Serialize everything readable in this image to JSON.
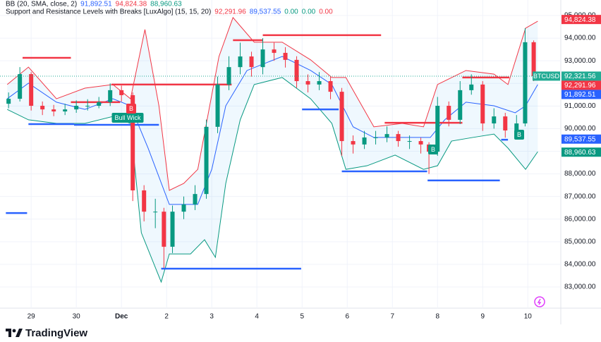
{
  "chart_data": {
    "type": "candlestick",
    "indicators": [
      {
        "name": "BB (20, SMA, close, 2)",
        "values": [
          {
            "value": 91892.51,
            "label": "91,892.51",
            "color": "#2962ff"
          },
          {
            "value": 94824.38,
            "label": "94,824.38",
            "color": "#f23645"
          },
          {
            "value": 88960.63,
            "label": "88,960.63",
            "color": "#089981"
          }
        ]
      },
      {
        "name": "Support and Resistance Levels with Breaks [LuxAlgo] (15, 15, 20)",
        "values": [
          {
            "value": 92291.96,
            "label": "92,291.96",
            "color": "#f23645"
          },
          {
            "value": 89537.55,
            "label": "89,537.55",
            "color": "#2962ff"
          },
          {
            "value": 0,
            "label": "0.00",
            "color": "#089981"
          },
          {
            "value": 0,
            "label": "0.00",
            "color": "#089981"
          },
          {
            "value": 0,
            "label": "0.00",
            "color": "#f23645"
          }
        ]
      }
    ],
    "xlim": [
      -0.69,
      11.73
    ],
    "xticks": [
      {
        "value": 0,
        "label": "29"
      },
      {
        "value": 1,
        "label": "30"
      },
      {
        "value": 2,
        "label": "Dec"
      },
      {
        "value": 3,
        "label": "2"
      },
      {
        "value": 4,
        "label": "3"
      },
      {
        "value": 5,
        "label": "4"
      },
      {
        "value": 6,
        "label": "5"
      },
      {
        "value": 7,
        "label": "6"
      },
      {
        "value": 8,
        "label": "7"
      },
      {
        "value": 9,
        "label": "8"
      },
      {
        "value": 10,
        "label": "9"
      },
      {
        "value": 11,
        "label": "10"
      }
    ],
    "ylim": [
      82065,
      95686
    ],
    "yticks": [
      {
        "value": 83000,
        "label": "83,000.00"
      },
      {
        "value": 84000,
        "label": "84,000.00"
      },
      {
        "value": 85000,
        "label": "85,000.00"
      },
      {
        "value": 86000,
        "label": "86,000.00"
      },
      {
        "value": 87000,
        "label": "87,000.00"
      },
      {
        "value": 88000,
        "label": "88,000.00"
      },
      {
        "value": 89000,
        "label": "89,000.00"
      },
      {
        "value": 90000,
        "label": "90,000.00"
      },
      {
        "value": 91000,
        "label": "91,000.00"
      },
      {
        "value": 92000,
        "label": "92,000.00"
      },
      {
        "value": 93000,
        "label": "93,000.00"
      },
      {
        "value": 94000,
        "label": "94,000.00"
      },
      {
        "value": 95000,
        "label": "95,000.00"
      }
    ],
    "grid": true,
    "up_color": "#089981",
    "down_color": "#f23645",
    "candles": {
      "x": [
        -0.5,
        -0.25,
        0,
        0.25,
        0.5,
        0.75,
        1,
        1.25,
        1.5,
        1.75,
        2,
        2.25,
        2.5,
        2.75,
        2.94,
        3.13,
        3.38,
        3.63,
        3.88,
        4.13,
        4.38,
        4.63,
        4.88,
        5.13,
        5.38,
        5.63,
        5.88,
        6.13,
        6.38,
        6.63,
        6.88,
        7.13,
        7.38,
        7.63,
        7.88,
        8.13,
        8.38,
        8.63,
        8.81,
        9,
        9.25,
        9.5,
        9.75,
        10,
        10.25,
        10.5,
        10.75,
        10.94,
        11.13
      ],
      "open": [
        91100,
        91320,
        92410,
        91010,
        90850,
        90760,
        90850,
        91010,
        91010,
        91170,
        91700,
        91480,
        87270,
        86330,
        86330,
        84780,
        86330,
        86650,
        87110,
        90080,
        91950,
        92720,
        93190,
        92720,
        93500,
        93350,
        93040,
        92100,
        91950,
        92100,
        91630,
        89450,
        89300,
        89610,
        89610,
        89760,
        89450,
        89450,
        89300,
        88980,
        91010,
        90390,
        91700,
        91950,
        90230,
        90540,
        89920,
        90230,
        93820
      ],
      "high": [
        91600,
        92720,
        92500,
        91200,
        91050,
        91100,
        91250,
        91300,
        91400,
        92000,
        91900,
        91600,
        87500,
        86900,
        86500,
        86600,
        87000,
        87500,
        90400,
        92300,
        93200,
        93800,
        93400,
        94000,
        93800,
        93600,
        93200,
        92400,
        92500,
        92300,
        91800,
        89700,
        89900,
        89900,
        90100,
        89900,
        89700,
        89600,
        89400,
        91400,
        91200,
        92100,
        92400,
        92100,
        90900,
        90700,
        90600,
        94440,
        93900
      ],
      "low": [
        90900,
        91200,
        90800,
        90600,
        90550,
        90600,
        90700,
        90800,
        90900,
        91000,
        91200,
        86800,
        85900,
        85600,
        83840,
        84500,
        86000,
        86400,
        86900,
        89800,
        91700,
        92400,
        92300,
        92400,
        93000,
        92700,
        91800,
        91600,
        91700,
        91300,
        88800,
        88900,
        89100,
        89300,
        89400,
        89200,
        89100,
        88900,
        88000,
        88800,
        90100,
        90200,
        91500,
        89900,
        90000,
        89600,
        89700,
        90100,
        92100
      ],
      "close": [
        91320,
        92410,
        91010,
        90850,
        90760,
        90850,
        91010,
        91010,
        91170,
        91700,
        91480,
        87270,
        86330,
        86330,
        84780,
        86330,
        86650,
        87110,
        90080,
        91950,
        92720,
        93190,
        92720,
        93500,
        93350,
        93040,
        92100,
        91950,
        92100,
        91630,
        89450,
        89300,
        89610,
        89610,
        89760,
        89450,
        89450,
        89300,
        88980,
        91010,
        90390,
        91700,
        91950,
        90230,
        90540,
        89920,
        90230,
        93820,
        92320
      ]
    },
    "bands": [
      {
        "color": "#f23645",
        "x": [
          -0.53,
          -0.06,
          0.56,
          1.19,
          1.81,
          2.2,
          2.52,
          2.83,
          3.06,
          3.38,
          3.69,
          4.16,
          4.47,
          4.94,
          5.56,
          6.19,
          6.66,
          6.97,
          7.59,
          8.22,
          8.69,
          9,
          9.63,
          10.25,
          10.56,
          10.95,
          11.22
        ],
        "values": [
          91950,
          92720,
          91320,
          91790,
          91950,
          91320,
          94380,
          91010,
          87270,
          87580,
          88200,
          93190,
          94910,
          93820,
          93820,
          93040,
          92260,
          92260,
          90080,
          90230,
          90080,
          91950,
          92570,
          92410,
          91950,
          94440,
          94750
        ]
      },
      {
        "color": "#2962ff",
        "x": [
          -0.53,
          -0.06,
          0.56,
          1.19,
          1.81,
          2.2,
          2.59,
          3.06,
          3.69,
          4,
          4.31,
          4.78,
          5.56,
          6.19,
          6.66,
          7.13,
          7.59,
          8.22,
          8.84,
          9.16,
          9.63,
          10.25,
          10.72,
          10.95,
          11.22
        ],
        "values": [
          91320,
          92010,
          91170,
          90850,
          91320,
          91010,
          89140,
          86650,
          86650,
          88200,
          91010,
          92570,
          93190,
          92570,
          91950,
          90080,
          89610,
          89610,
          89610,
          90390,
          91170,
          91010,
          90700,
          91010,
          91950
        ]
      },
      {
        "color": "#089981",
        "x": [
          -0.53,
          -0.06,
          0.56,
          1.19,
          1.81,
          2.2,
          2.44,
          2.88,
          3.06,
          3.53,
          3.84,
          4.08,
          4.31,
          4.63,
          4.94,
          5.56,
          6.19,
          6.66,
          6.97,
          7.44,
          8.06,
          8.69,
          9,
          9.31,
          9.78,
          10.25,
          10.56,
          10.95,
          11.22
        ],
        "values": [
          90850,
          90390,
          90230,
          90230,
          90540,
          90230,
          85400,
          83220,
          84460,
          84460,
          85090,
          84310,
          87580,
          90390,
          91950,
          92260,
          91320,
          90230,
          88200,
          88360,
          88830,
          88200,
          88360,
          89450,
          89610,
          89760,
          89140,
          88200,
          88980
        ]
      }
    ],
    "resistance_levels": {
      "color": "#f23645",
      "lines": [
        {
          "x": [
            -0.19,
            0.88
          ],
          "value": 93130
        },
        {
          "x": [
            0.88,
            1.97
          ],
          "value": 91170
        },
        {
          "x": [
            1.78,
            4.44
          ],
          "value": 91950
        },
        {
          "x": [
            4.47,
            5.13
          ],
          "value": 93910
        },
        {
          "x": [
            5.13,
            7.75
          ],
          "value": 94130
        },
        {
          "x": [
            7.83,
            9.55
          ],
          "value": 90260
        },
        {
          "x": [
            9.55,
            10.59
          ],
          "value": 92260
        }
      ]
    },
    "support_levels": {
      "color": "#2962ff",
      "lines": [
        {
          "x": [
            -0.56,
            -0.09
          ],
          "value": 86270
        },
        {
          "x": [
            -0.06,
            0.95
          ],
          "value": 90200
        },
        {
          "x": [
            0.95,
            2.83
          ],
          "value": 90170
        },
        {
          "x": [
            2.88,
            5.98
          ],
          "value": 83810
        },
        {
          "x": [
            6,
            6.81
          ],
          "value": 90850
        },
        {
          "x": [
            6.88,
            8.77
          ],
          "value": 88110
        },
        {
          "x": [
            8.78,
            10.38
          ],
          "value": 87710
        },
        {
          "x": [
            10.41,
            10.56
          ],
          "value": 89510
        }
      ]
    },
    "annotations": [
      {
        "label": "Bull Wick",
        "color": "#089981"
      },
      {
        "label": "B",
        "color": "#f23645"
      },
      {
        "label": "B",
        "color": "#089981"
      },
      {
        "label": "B",
        "color": "#089981"
      }
    ],
    "last_price": {
      "symbol": "BTCUSD",
      "value": 92321.56,
      "label": "92,321.56",
      "color": "#22ab94"
    },
    "price_tags": [
      {
        "value": 94824.38,
        "label": "94,824.38",
        "color": "#f23645"
      },
      {
        "value": 92291.96,
        "label": "92,291.96",
        "color": "#f23645"
      },
      {
        "value": 91892.51,
        "label": "91,892.51",
        "color": "#2962ff"
      },
      {
        "value": 89537.55,
        "label": "89,537.55",
        "color": "#2962ff"
      },
      {
        "value": 88960.63,
        "label": "88,960.63",
        "color": "#089981"
      }
    ],
    "brand": "TradingView"
  }
}
